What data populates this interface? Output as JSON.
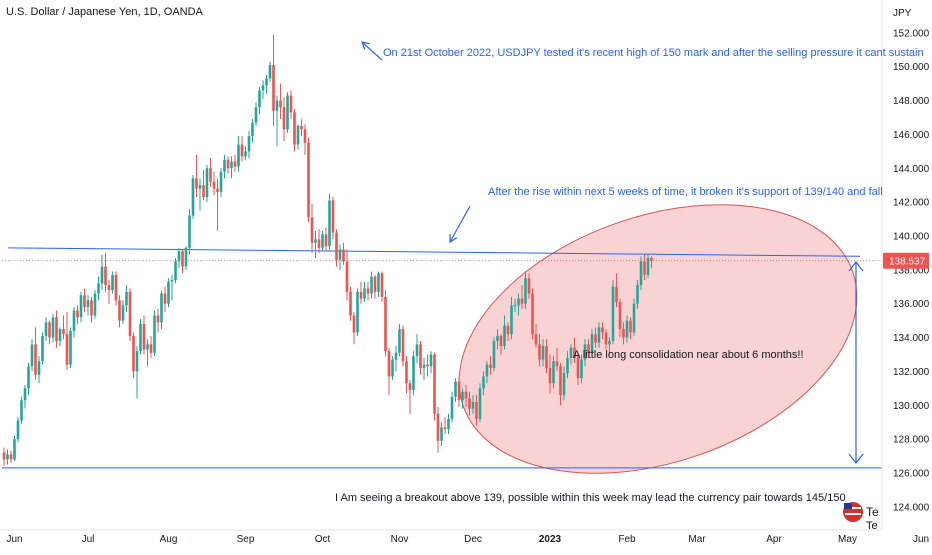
{
  "header": {
    "title": "U.S. Dollar / Japanese Yen, 1D, OANDA"
  },
  "price_axis": {
    "unit": "JPY",
    "current_price": "138.537"
  },
  "annotations": {
    "note_top": "On 21st October 2022, USDJPY tested it's recent high of 150 mark and after the selling pressure it cant sustain",
    "note_mid": "After the rise within next 5 weeks of time,  it broken it's support of 139/140  and fall",
    "note_consolidation": "A little long consolidation near about 6 months!!",
    "note_bottom": "I Am seeing a breakout above 139, possible within this week may lead the currency pair towards 145/150"
  },
  "watermark": {
    "text": "Te",
    "text2": "Te"
  },
  "colors": {
    "up": "#26a69a",
    "down": "#ef5350",
    "trendline": "#2962ff",
    "annotation_text": "#2962ff",
    "ellipse_fill": "#f7c4c4",
    "ellipse_stroke": "#e05252",
    "price_label_bg": "#ef5350",
    "axis_text": "#131722"
  },
  "chart_data": {
    "type": "candlestick",
    "title": "U.S. Dollar / Japanese Yen, 1D, OANDA",
    "ylabel": "JPY",
    "ylim": [
      123,
      153
    ],
    "y_ticks": [
      124,
      126,
      128,
      130,
      132,
      134,
      136,
      138,
      140,
      142,
      144,
      146,
      148,
      150,
      152
    ],
    "x_tick_labels": [
      "Jun",
      "Jul",
      "Aug",
      "Sep",
      "Oct",
      "Nov",
      "Dec",
      "2023",
      "Feb",
      "Mar",
      "Apr",
      "May",
      "Jun"
    ],
    "x_tick_index": [
      3,
      24,
      47,
      69,
      91,
      113,
      134,
      156,
      178,
      198,
      220,
      241,
      262
    ],
    "current_price": 138.537,
    "support_line": 126.3,
    "resistance_line": {
      "start": 139.3,
      "end": 138.8
    },
    "candles_ohlc": [
      [
        127.2,
        127.5,
        126.4,
        126.8
      ],
      [
        126.8,
        127.4,
        126.5,
        127.1
      ],
      [
        127.1,
        127.3,
        126.6,
        126.8
      ],
      [
        126.8,
        128.2,
        126.7,
        128.0
      ],
      [
        128.0,
        129.3,
        127.8,
        129.1
      ],
      [
        129.1,
        130.5,
        128.9,
        130.3
      ],
      [
        130.3,
        131.2,
        129.8,
        131.0
      ],
      [
        131.0,
        132.5,
        130.6,
        132.3
      ],
      [
        132.3,
        133.9,
        132.0,
        133.6
      ],
      [
        133.6,
        134.6,
        131.5,
        131.8
      ],
      [
        131.8,
        132.9,
        131.3,
        132.6
      ],
      [
        132.6,
        134.3,
        132.4,
        134.1
      ],
      [
        134.1,
        135.2,
        133.8,
        134.9
      ],
      [
        134.9,
        135.0,
        133.6,
        134.0
      ],
      [
        134.0,
        135.4,
        133.7,
        135.2
      ],
      [
        135.2,
        135.6,
        133.4,
        133.8
      ],
      [
        133.8,
        134.6,
        133.5,
        134.5
      ],
      [
        134.5,
        135.3,
        133.9,
        134.2
      ],
      [
        134.2,
        135.5,
        132.1,
        132.4
      ],
      [
        132.4,
        134.6,
        132.2,
        134.4
      ],
      [
        134.4,
        135.8,
        134.0,
        135.6
      ],
      [
        135.6,
        135.9,
        134.8,
        135.2
      ],
      [
        135.2,
        136.7,
        134.9,
        136.5
      ],
      [
        136.5,
        136.9,
        135.5,
        135.8
      ],
      [
        135.8,
        136.5,
        135.3,
        136.2
      ],
      [
        136.2,
        136.4,
        134.9,
        135.3
      ],
      [
        135.3,
        136.8,
        135.1,
        136.6
      ],
      [
        136.6,
        137.6,
        136.2,
        137.2
      ],
      [
        137.2,
        138.9,
        136.8,
        138.2
      ],
      [
        138.2,
        139.0,
        136.7,
        137.1
      ],
      [
        137.1,
        137.4,
        136.0,
        136.8
      ],
      [
        136.8,
        137.9,
        136.6,
        137.7
      ],
      [
        137.7,
        137.9,
        135.9,
        136.2
      ],
      [
        136.2,
        136.5,
        134.6,
        135.0
      ],
      [
        135.0,
        136.2,
        134.8,
        135.9
      ],
      [
        135.9,
        137.1,
        135.5,
        136.7
      ],
      [
        136.7,
        136.9,
        133.8,
        134.1
      ],
      [
        134.1,
        134.3,
        131.6,
        132.0
      ],
      [
        132.0,
        133.5,
        130.4,
        133.2
      ],
      [
        133.2,
        135.1,
        133.0,
        134.8
      ],
      [
        134.8,
        135.3,
        133.0,
        133.3
      ],
      [
        133.3,
        133.9,
        132.3,
        133.6
      ],
      [
        133.6,
        134.1,
        132.8,
        133.1
      ],
      [
        133.1,
        135.6,
        132.9,
        135.3
      ],
      [
        135.3,
        135.7,
        134.3,
        134.9
      ],
      [
        134.9,
        136.8,
        134.5,
        136.6
      ],
      [
        136.6,
        137.0,
        135.5,
        136.0
      ],
      [
        136.0,
        137.5,
        135.8,
        137.3
      ],
      [
        137.3,
        137.7,
        136.2,
        137.4
      ],
      [
        137.4,
        138.7,
        137.2,
        138.5
      ],
      [
        138.5,
        139.3,
        138.1,
        139.1
      ],
      [
        139.1,
        139.2,
        137.8,
        138.2
      ],
      [
        138.2,
        139.4,
        138.0,
        139.3
      ],
      [
        139.3,
        141.6,
        138.9,
        141.2
      ],
      [
        141.2,
        143.6,
        141.0,
        143.4
      ],
      [
        143.4,
        144.8,
        142.3,
        142.8
      ],
      [
        142.8,
        143.4,
        141.5,
        143.0
      ],
      [
        143.0,
        143.9,
        142.1,
        142.3
      ],
      [
        142.3,
        144.2,
        142.0,
        144.0
      ],
      [
        144.0,
        144.6,
        142.9,
        143.2
      ],
      [
        143.2,
        143.8,
        142.4,
        142.8
      ],
      [
        142.8,
        143.4,
        140.3,
        142.6
      ],
      [
        142.6,
        144.0,
        142.3,
        143.8
      ],
      [
        143.8,
        144.8,
        143.4,
        144.5
      ],
      [
        144.5,
        144.7,
        143.7,
        144.0
      ],
      [
        144.0,
        144.7,
        143.4,
        144.4
      ],
      [
        144.4,
        144.8,
        143.8,
        144.1
      ],
      [
        144.1,
        145.9,
        143.8,
        145.4
      ],
      [
        145.4,
        145.9,
        144.4,
        144.7
      ],
      [
        144.7,
        145.3,
        144.5,
        145.0
      ],
      [
        145.0,
        146.2,
        144.6,
        145.9
      ],
      [
        145.9,
        146.9,
        145.5,
        146.7
      ],
      [
        146.7,
        147.9,
        146.5,
        147.6
      ],
      [
        147.6,
        148.8,
        147.2,
        148.6
      ],
      [
        148.6,
        149.2,
        148.1,
        148.9
      ],
      [
        148.9,
        149.5,
        148.4,
        149.3
      ],
      [
        149.3,
        150.3,
        149.1,
        150.1
      ],
      [
        150.1,
        151.9,
        146.5,
        147.4
      ],
      [
        147.4,
        148.3,
        145.3,
        148.0
      ],
      [
        148.0,
        149.0,
        146.9,
        147.6
      ],
      [
        147.6,
        148.2,
        145.6,
        146.3
      ],
      [
        146.3,
        148.5,
        146.1,
        148.3
      ],
      [
        148.3,
        148.6,
        146.9,
        147.3
      ],
      [
        147.3,
        147.5,
        145.0,
        145.4
      ],
      [
        145.4,
        146.6,
        145.1,
        146.5
      ],
      [
        146.5,
        146.9,
        145.9,
        146.3
      ],
      [
        146.3,
        146.6,
        144.8,
        145.5
      ],
      [
        145.5,
        145.8,
        140.8,
        141.1
      ],
      [
        141.1,
        141.9,
        139.0,
        139.6
      ],
      [
        139.6,
        140.3,
        138.7,
        139.8
      ],
      [
        139.8,
        140.4,
        139.0,
        139.3
      ],
      [
        139.3,
        140.3,
        139.1,
        140.1
      ],
      [
        140.1,
        140.5,
        139.1,
        139.4
      ],
      [
        139.4,
        142.5,
        139.2,
        142.1
      ],
      [
        142.1,
        142.3,
        139.8,
        140.2
      ],
      [
        140.2,
        140.4,
        138.2,
        138.6
      ],
      [
        138.6,
        139.5,
        138.0,
        139.2
      ],
      [
        139.2,
        139.6,
        138.3,
        138.5
      ],
      [
        138.5,
        139.2,
        136.2,
        136.7
      ],
      [
        136.7,
        137.0,
        135.0,
        135.3
      ],
      [
        135.3,
        135.5,
        133.6,
        134.3
      ],
      [
        134.3,
        136.9,
        134.1,
        136.7
      ],
      [
        136.7,
        137.3,
        136.0,
        136.3
      ],
      [
        136.3,
        137.3,
        136.1,
        136.9
      ],
      [
        136.9,
        137.3,
        136.2,
        136.6
      ],
      [
        136.6,
        137.9,
        136.3,
        137.6
      ],
      [
        137.6,
        137.7,
        136.3,
        136.7
      ],
      [
        136.7,
        137.9,
        136.4,
        137.8
      ],
      [
        137.8,
        137.9,
        136.1,
        136.4
      ],
      [
        136.4,
        136.8,
        132.9,
        133.2
      ],
      [
        133.2,
        133.4,
        130.6,
        131.7
      ],
      [
        131.7,
        132.9,
        131.5,
        132.7
      ],
      [
        132.7,
        133.5,
        132.0,
        133.1
      ],
      [
        133.1,
        134.8,
        132.9,
        134.5
      ],
      [
        134.5,
        134.7,
        132.3,
        132.6
      ],
      [
        132.6,
        132.9,
        130.7,
        131.3
      ],
      [
        131.3,
        131.5,
        129.5,
        130.9
      ],
      [
        130.9,
        133.2,
        130.6,
        132.9
      ],
      [
        132.9,
        134.2,
        132.5,
        133.6
      ],
      [
        133.6,
        133.8,
        131.8,
        132.2
      ],
      [
        132.2,
        132.8,
        131.5,
        132.4
      ],
      [
        132.4,
        133.0,
        131.7,
        132.3
      ],
      [
        132.3,
        133.2,
        131.9,
        133.0
      ],
      [
        133.0,
        133.1,
        129.1,
        129.5
      ],
      [
        129.5,
        129.9,
        127.2,
        127.9
      ],
      [
        127.9,
        129.0,
        127.6,
        128.7
      ],
      [
        128.7,
        129.3,
        128.3,
        128.6
      ],
      [
        128.6,
        129.5,
        128.3,
        129.2
      ],
      [
        129.2,
        130.8,
        129.0,
        130.5
      ],
      [
        130.5,
        131.6,
        130.2,
        131.4
      ],
      [
        131.4,
        131.7,
        129.9,
        130.3
      ],
      [
        130.3,
        131.0,
        129.8,
        130.8
      ],
      [
        130.8,
        131.2,
        129.9,
        130.4
      ],
      [
        130.4,
        130.8,
        129.4,
        129.8
      ],
      [
        129.8,
        130.6,
        129.5,
        130.2
      ],
      [
        130.2,
        130.6,
        128.8,
        129.2
      ],
      [
        129.2,
        131.3,
        129.0,
        131.0
      ],
      [
        131.0,
        132.0,
        130.6,
        131.7
      ],
      [
        131.7,
        132.6,
        131.3,
        132.4
      ],
      [
        132.4,
        132.9,
        131.8,
        132.2
      ],
      [
        132.2,
        134.0,
        132.0,
        133.8
      ],
      [
        133.8,
        134.5,
        133.3,
        134.1
      ],
      [
        134.1,
        134.2,
        133.0,
        133.5
      ],
      [
        133.5,
        135.3,
        133.3,
        134.7
      ],
      [
        134.7,
        134.9,
        133.8,
        134.2
      ],
      [
        134.2,
        136.4,
        133.9,
        135.9
      ],
      [
        135.9,
        136.3,
        135.5,
        135.9
      ],
      [
        135.9,
        136.6,
        135.3,
        136.3
      ],
      [
        136.3,
        137.1,
        135.7,
        136.0
      ],
      [
        136.0,
        137.9,
        135.7,
        137.5
      ],
      [
        137.5,
        137.8,
        136.3,
        136.6
      ],
      [
        136.6,
        136.9,
        133.9,
        134.2
      ],
      [
        134.2,
        134.8,
        133.4,
        133.6
      ],
      [
        133.6,
        134.2,
        132.3,
        132.7
      ],
      [
        132.7,
        133.9,
        132.3,
        133.5
      ],
      [
        133.5,
        133.9,
        131.9,
        132.2
      ],
      [
        132.2,
        133.0,
        130.7,
        131.3
      ],
      [
        131.3,
        132.9,
        131.0,
        132.6
      ],
      [
        132.6,
        133.4,
        132.0,
        132.3
      ],
      [
        132.3,
        132.5,
        130.0,
        130.6
      ],
      [
        130.6,
        132.3,
        130.3,
        131.9
      ],
      [
        131.9,
        133.2,
        131.6,
        132.8
      ],
      [
        132.8,
        133.6,
        132.4,
        133.4
      ],
      [
        133.4,
        134.0,
        132.5,
        132.8
      ],
      [
        132.8,
        133.1,
        131.2,
        131.6
      ],
      [
        131.6,
        133.0,
        131.3,
        132.7
      ],
      [
        132.7,
        133.9,
        132.3,
        133.6
      ],
      [
        133.6,
        133.9,
        132.8,
        133.1
      ],
      [
        133.1,
        134.5,
        132.8,
        134.2
      ],
      [
        134.2,
        134.6,
        133.4,
        133.7
      ],
      [
        133.7,
        134.9,
        133.4,
        134.6
      ],
      [
        134.6,
        134.9,
        133.9,
        134.3
      ],
      [
        134.3,
        134.5,
        133.3,
        133.6
      ],
      [
        133.6,
        134.0,
        133.0,
        133.8
      ],
      [
        133.8,
        137.4,
        133.6,
        137.0
      ],
      [
        137.0,
        137.8,
        135.8,
        136.1
      ],
      [
        136.1,
        136.3,
        134.0,
        134.5
      ],
      [
        134.5,
        134.9,
        133.6,
        134.0
      ],
      [
        134.0,
        135.3,
        133.7,
        135.0
      ],
      [
        135.0,
        135.2,
        133.9,
        134.3
      ],
      [
        134.3,
        136.3,
        134.1,
        136.0
      ],
      [
        136.0,
        137.4,
        135.7,
        137.1
      ],
      [
        137.1,
        138.8,
        136.8,
        138.5
      ],
      [
        138.5,
        138.9,
        137.4,
        137.7
      ],
      [
        137.7,
        138.9,
        137.5,
        138.7
      ],
      [
        138.7,
        138.8,
        138.1,
        138.537
      ]
    ]
  }
}
